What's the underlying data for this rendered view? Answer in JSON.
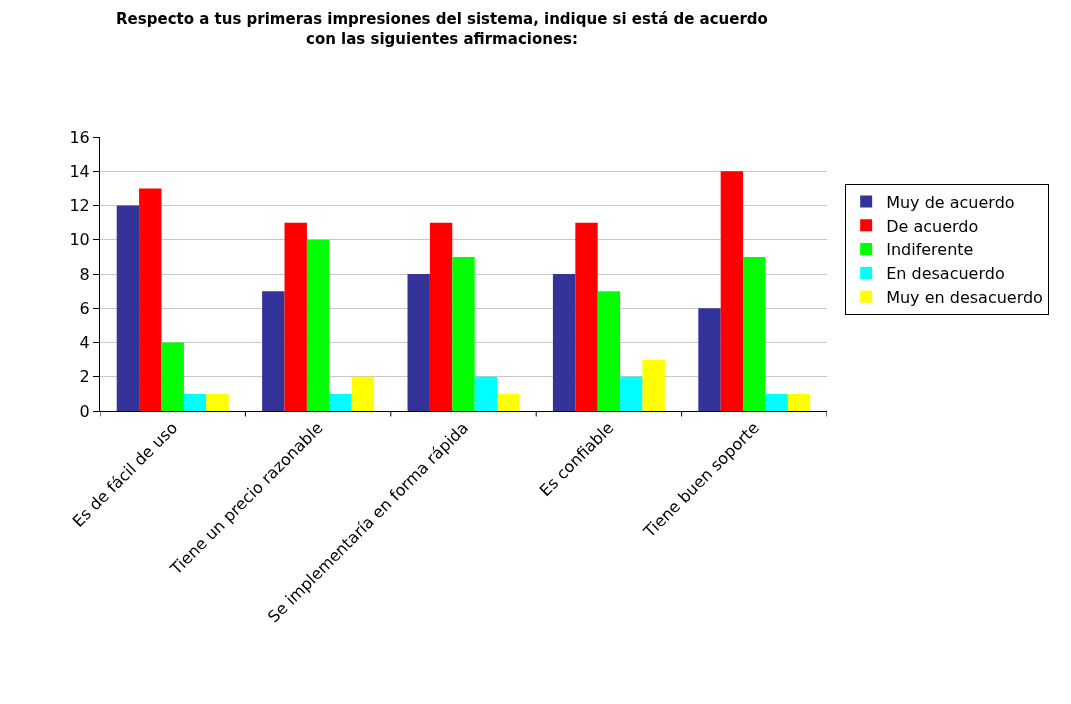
{
  "chart_data": {
    "type": "bar",
    "title": "Respecto a tus primeras impresiones del sistema, indique si está de acuerdo\ncon las siguientes afirmaciones:",
    "categories": [
      "Es de fácil de uso",
      "Tiene un precio razonable",
      "Se implementaría en forma rápida",
      "Es confiable",
      "Tiene buen soporte"
    ],
    "series": [
      {
        "name": "Muy de acuerdo",
        "color": "#333399",
        "values": [
          12,
          7,
          8,
          8,
          6
        ]
      },
      {
        "name": "De acuerdo",
        "color": "#ff0000",
        "values": [
          13,
          11,
          11,
          11,
          14
        ]
      },
      {
        "name": "Indiferente",
        "color": "#00ff00",
        "values": [
          4,
          10,
          9,
          7,
          9
        ]
      },
      {
        "name": "En desacuerdo",
        "color": "#00ffff",
        "values": [
          1,
          1,
          2,
          2,
          1
        ]
      },
      {
        "name": "Muy en desacuerdo",
        "color": "#ffff00",
        "values": [
          1,
          2,
          1,
          3,
          1
        ]
      }
    ],
    "ylim": [
      0,
      16
    ],
    "yticks": [
      0,
      2,
      4,
      6,
      8,
      10,
      12,
      14,
      16
    ],
    "grid": "y",
    "legend": "right"
  }
}
